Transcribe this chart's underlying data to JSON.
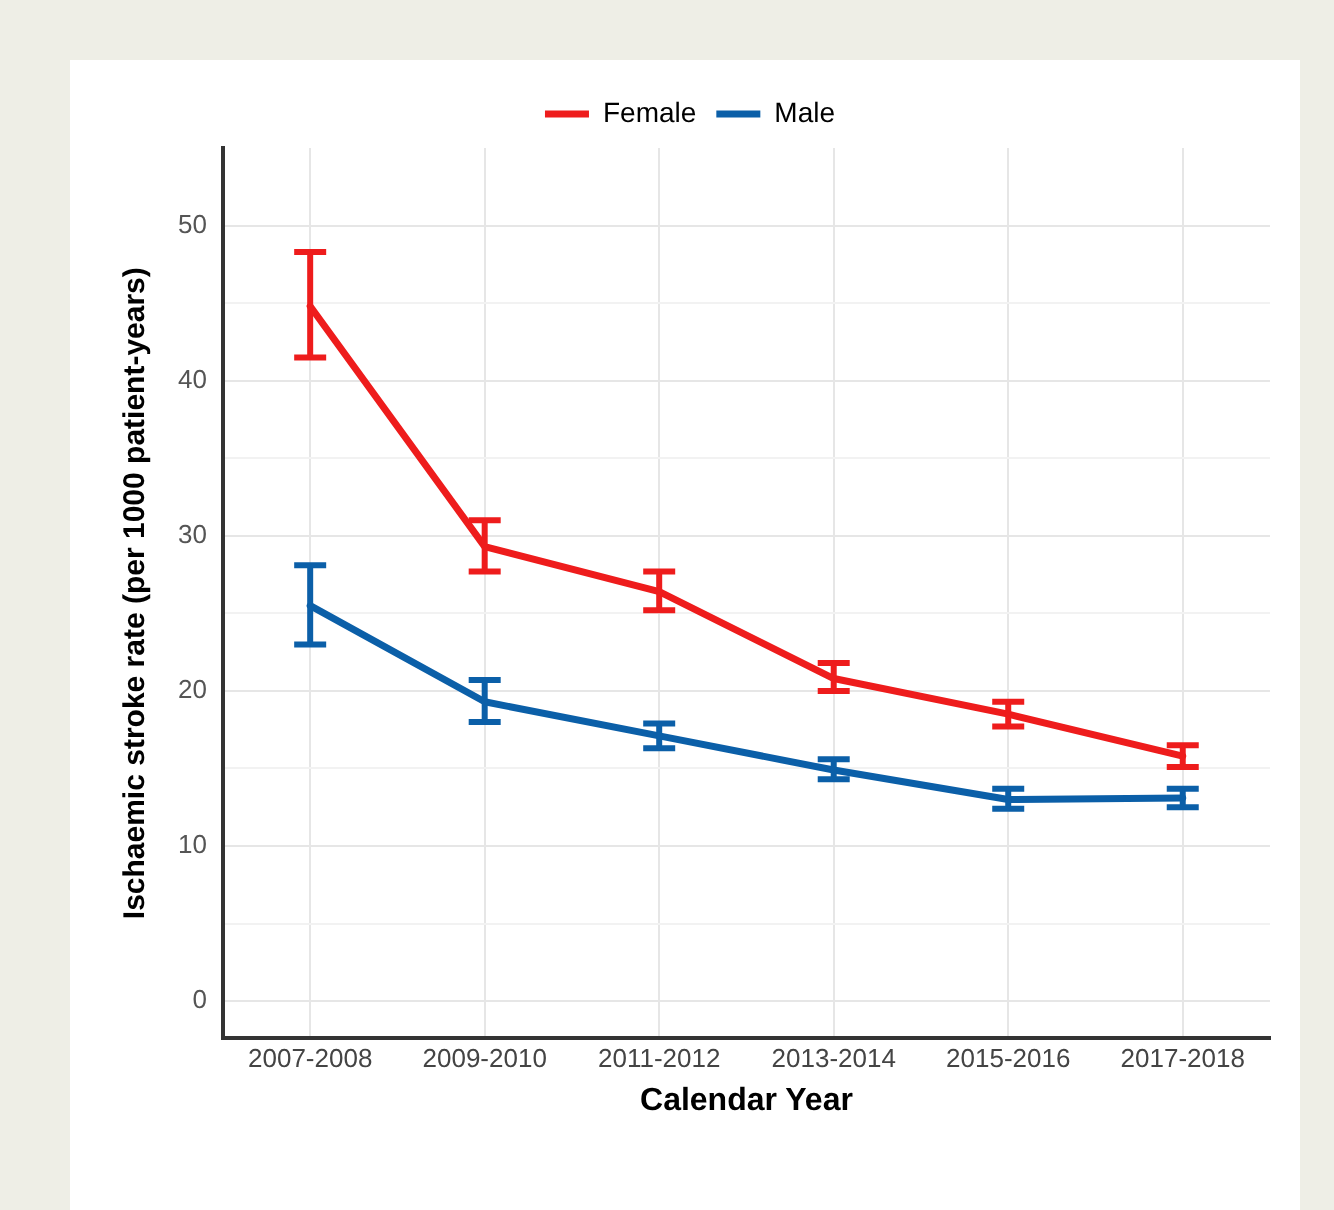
{
  "chart_data": {
    "type": "line",
    "xlabel": "Calendar Year",
    "ylabel": "Ischaemic stroke rate (per 1000 patient-years)",
    "categories": [
      "2007-2008",
      "2009-2010",
      "2011-2012",
      "2013-2014",
      "2015-2016",
      "2017-2018"
    ],
    "series": [
      {
        "name": "Female",
        "color": "#ee1c1c",
        "values": [
          44.8,
          29.3,
          26.4,
          20.8,
          18.5,
          15.8
        ],
        "errors": [
          [
            41.5,
            48.3
          ],
          [
            27.7,
            31.0
          ],
          [
            25.2,
            27.7
          ],
          [
            20.0,
            21.8
          ],
          [
            17.7,
            19.3
          ],
          [
            15.1,
            16.5
          ]
        ]
      },
      {
        "name": "Male",
        "color": "#0b5fa8",
        "values": [
          25.5,
          19.3,
          17.1,
          14.9,
          13.0,
          13.1
        ],
        "errors": [
          [
            23.0,
            28.1
          ],
          [
            18.0,
            20.7
          ],
          [
            16.3,
            17.9
          ],
          [
            14.3,
            15.6
          ],
          [
            12.4,
            13.7
          ],
          [
            12.5,
            13.7
          ]
        ]
      }
    ],
    "ylim": [
      -2.4,
      55
    ],
    "yticks": [
      0,
      {
        "value": 5,
        "label": null
      },
      10,
      {
        "value": 15,
        "label": null
      },
      20,
      {
        "value": 25,
        "label": null
      },
      30,
      {
        "value": 35,
        "label": null
      },
      40,
      {
        "value": 45,
        "label": null
      },
      50
    ],
    "grid": true,
    "legend": "top",
    "line_style": "solid"
  }
}
